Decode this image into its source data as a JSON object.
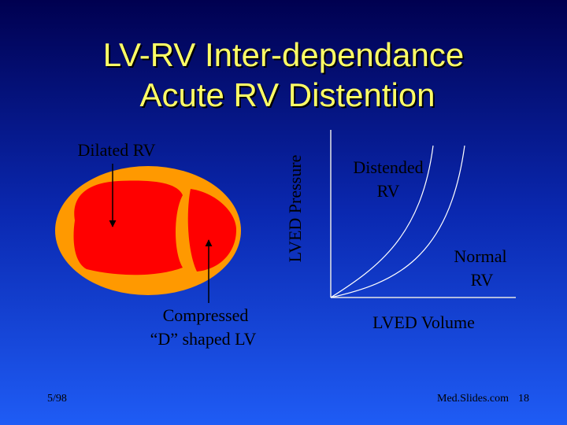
{
  "title": {
    "line1": "LV-RV Inter-dependance",
    "line2": "Acute RV Distention"
  },
  "heart": {
    "dilated_label": "Dilated RV",
    "compressed_label_1": "Compressed",
    "compressed_label_2": "“D” shaped LV"
  },
  "graph": {
    "y_axis_label": "LVED Pressure",
    "x_axis_label": "LVED Volume",
    "distended_label_1": "Distended",
    "distended_label_2": "RV",
    "normal_label_1": "Normal",
    "normal_label_2": "RV"
  },
  "footer": {
    "date": "5/98",
    "source": "Med.Slides.com",
    "page": "18"
  }
}
